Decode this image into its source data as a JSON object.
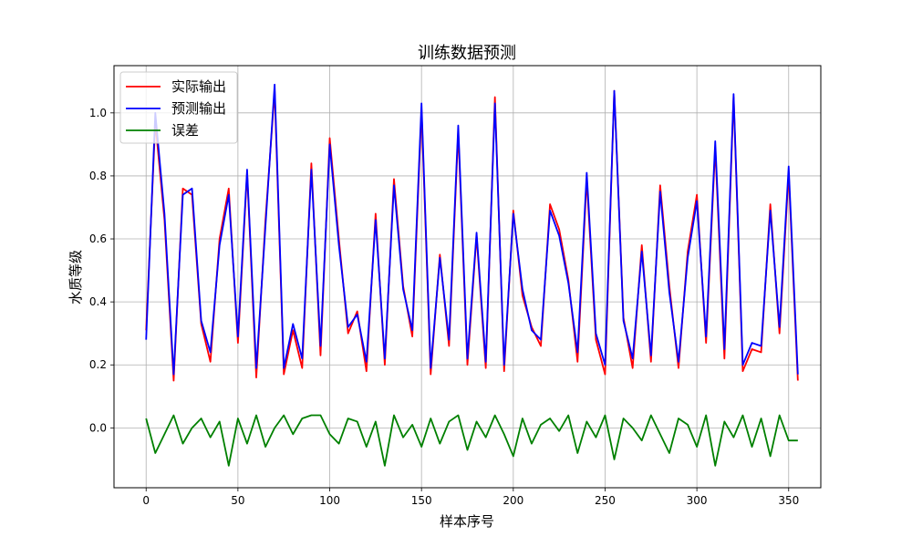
{
  "chart_data": {
    "type": "line",
    "title": "训练数据预测",
    "xlabel": "样本序号",
    "ylabel": "水质等级",
    "xlim": [
      -17.5,
      367.5
    ],
    "ylim": [
      -0.19,
      1.15
    ],
    "xticks": [
      0,
      50,
      100,
      150,
      200,
      250,
      300,
      350
    ],
    "yticks": [
      0.0,
      0.2,
      0.4,
      0.6,
      0.8,
      1.0
    ],
    "ytick_labels": [
      "0.0",
      "0.2",
      "0.4",
      "0.6",
      "0.8",
      "1.0"
    ],
    "grid": true,
    "legend_position": "upper-left",
    "x_step": 5,
    "series": [
      {
        "name": "实际输出",
        "color": "#ff0000",
        "values": [
          0.31,
          0.97,
          0.66,
          0.15,
          0.76,
          0.74,
          0.33,
          0.21,
          0.6,
          0.76,
          0.27,
          0.81,
          0.16,
          0.66,
          1.07,
          0.17,
          0.31,
          0.19,
          0.84,
          0.23,
          0.92,
          0.6,
          0.3,
          0.37,
          0.18,
          0.68,
          0.2,
          0.79,
          0.45,
          0.29,
          1.01,
          0.17,
          0.55,
          0.26,
          0.94,
          0.2,
          0.61,
          0.19,
          1.05,
          0.18,
          0.69,
          0.42,
          0.32,
          0.26,
          0.71,
          0.63,
          0.47,
          0.21,
          0.79,
          0.28,
          0.17,
          1.07,
          0.35,
          0.19,
          0.58,
          0.21,
          0.77,
          0.45,
          0.19,
          0.56,
          0.74,
          0.27,
          0.89,
          0.22,
          1.05,
          0.18,
          0.25,
          0.24,
          0.71,
          0.3,
          0.81,
          0.15
        ]
      },
      {
        "name": "预测输出",
        "color": "#0000ff",
        "values": [
          0.28,
          1.0,
          0.68,
          0.17,
          0.74,
          0.76,
          0.34,
          0.24,
          0.58,
          0.74,
          0.29,
          0.82,
          0.19,
          0.64,
          1.09,
          0.19,
          0.33,
          0.22,
          0.82,
          0.26,
          0.9,
          0.58,
          0.32,
          0.36,
          0.21,
          0.66,
          0.22,
          0.77,
          0.44,
          0.31,
          1.03,
          0.19,
          0.54,
          0.28,
          0.96,
          0.22,
          0.62,
          0.21,
          1.03,
          0.2,
          0.68,
          0.44,
          0.31,
          0.28,
          0.69,
          0.61,
          0.46,
          0.24,
          0.81,
          0.3,
          0.2,
          1.07,
          0.34,
          0.22,
          0.56,
          0.23,
          0.75,
          0.43,
          0.21,
          0.54,
          0.72,
          0.29,
          0.91,
          0.25,
          1.06,
          0.2,
          0.27,
          0.26,
          0.69,
          0.32,
          0.83,
          0.17
        ]
      },
      {
        "name": "误差",
        "color": "#008000",
        "values": [
          0.03,
          -0.08,
          -0.02,
          0.04,
          -0.05,
          0.0,
          0.03,
          -0.03,
          0.02,
          -0.12,
          0.03,
          -0.05,
          0.04,
          -0.06,
          0.0,
          0.04,
          -0.02,
          0.03,
          0.04,
          0.04,
          -0.02,
          -0.05,
          0.03,
          0.02,
          -0.06,
          0.02,
          -0.12,
          0.04,
          -0.03,
          0.01,
          -0.06,
          0.03,
          -0.05,
          0.02,
          0.04,
          -0.07,
          0.02,
          -0.03,
          0.04,
          -0.02,
          -0.09,
          0.03,
          -0.05,
          0.01,
          0.03,
          -0.01,
          0.04,
          -0.08,
          0.02,
          -0.03,
          0.04,
          -0.1,
          0.03,
          0.0,
          -0.04,
          0.04,
          -0.02,
          -0.08,
          0.03,
          0.01,
          -0.06,
          0.04,
          -0.12,
          0.02,
          -0.03,
          0.04,
          -0.06,
          0.03,
          -0.09,
          0.04,
          -0.04,
          -0.04
        ]
      }
    ]
  }
}
